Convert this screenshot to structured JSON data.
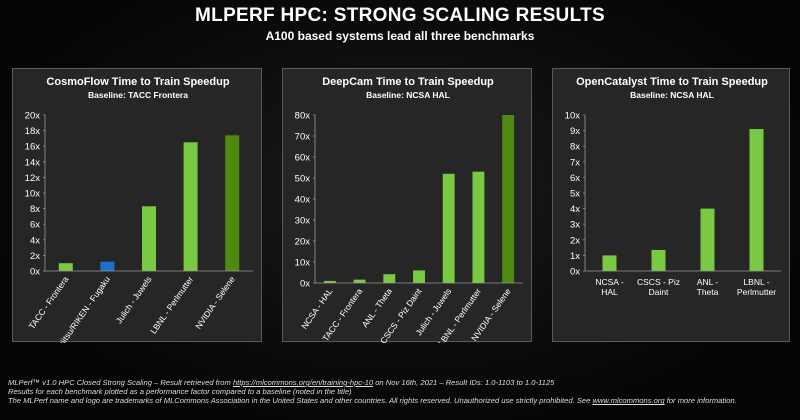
{
  "title": "MLPERF HPC: STRONG SCALING RESULTS",
  "subtitle": "A100 based systems lead all three benchmarks",
  "chart_data": [
    {
      "type": "bar",
      "title": "CosmoFlow Time to Train Speedup",
      "subtitle": "Baseline: TACC Frontera",
      "categories": [
        "TACC - Frontera",
        "Fujitsu/RIKEN - Fugaku",
        "Julich - Juwels",
        "LBNL - Perlmutter",
        "NVIDIA - Selene"
      ],
      "values": [
        1.0,
        1.2,
        8.3,
        16.5,
        17.4
      ],
      "colors": [
        "#7ac943",
        "#1a6fd0",
        "#7ac943",
        "#7ac943",
        "#4f8a10"
      ],
      "ylim": [
        0,
        20
      ],
      "yticks": [
        {
          "value": 0,
          "label": "0x"
        },
        {
          "value": 2,
          "label": "2x"
        },
        {
          "value": 4,
          "label": "4x"
        },
        {
          "value": 6,
          "label": "6x"
        },
        {
          "value": 8,
          "label": "8x"
        },
        {
          "value": 10,
          "label": "10x"
        },
        {
          "value": 12,
          "label": "12x"
        },
        {
          "value": 14,
          "label": "14x"
        },
        {
          "value": 16,
          "label": "16x"
        },
        {
          "value": 18,
          "label": "18x"
        },
        {
          "value": 20,
          "label": "20x"
        }
      ]
    },
    {
      "type": "bar",
      "title": "DeepCam Time to Train Speedup",
      "subtitle": "Baseline: NCSA HAL",
      "categories": [
        "NCSA - HAL",
        "TACC - Frontera",
        "ANL - Theta",
        "CSCS - Piz Daint",
        "Julich - Juwels",
        "LBNL - Perlmutter",
        "NVIDIA - Selene"
      ],
      "values": [
        1.0,
        1.6,
        4.2,
        6.0,
        52,
        53,
        80
      ],
      "colors": [
        "#7ac943",
        "#7ac943",
        "#7ac943",
        "#7ac943",
        "#7ac943",
        "#7ac943",
        "#4f8a10"
      ],
      "ylim": [
        0,
        80
      ],
      "yticks": [
        {
          "value": 0,
          "label": "0x"
        },
        {
          "value": 10,
          "label": "10x"
        },
        {
          "value": 20,
          "label": "20x"
        },
        {
          "value": 30,
          "label": "30x"
        },
        {
          "value": 40,
          "label": "40x"
        },
        {
          "value": 50,
          "label": "50x"
        },
        {
          "value": 60,
          "label": "60x"
        },
        {
          "value": 70,
          "label": "70x"
        },
        {
          "value": 80,
          "label": "80x"
        }
      ]
    },
    {
      "type": "bar",
      "title": "OpenCatalyst Time to Train Speedup",
      "subtitle": "Baseline: NCSA HAL",
      "categories": [
        "NCSA - HAL",
        "CSCS - Piz Daint",
        "ANL - Theta",
        "LBNL - Perlmutter"
      ],
      "values": [
        1.0,
        1.35,
        4.0,
        9.1
      ],
      "colors": [
        "#7ac943",
        "#7ac943",
        "#7ac943",
        "#7ac943"
      ],
      "ylim": [
        0,
        10
      ],
      "yticks": [
        {
          "value": 0,
          "label": "0x"
        },
        {
          "value": 1,
          "label": "1x"
        },
        {
          "value": 2,
          "label": "2x"
        },
        {
          "value": 3,
          "label": "3x"
        },
        {
          "value": 4,
          "label": "4x"
        },
        {
          "value": 5,
          "label": "5x"
        },
        {
          "value": 6,
          "label": "6x"
        },
        {
          "value": 7,
          "label": "7x"
        },
        {
          "value": 8,
          "label": "8x"
        },
        {
          "value": 9,
          "label": "9x"
        },
        {
          "value": 10,
          "label": "10x"
        }
      ]
    }
  ],
  "footnotes": [
    [
      "MLPerf™ v1.0 HPC Closed Strong Scaling – Result retrieved from ",
      "https://mlcommons.org/en/training-hpc-10",
      " on Nov 16th, 2021 – Result IDs: 1.0-1103 to 1.0-1125"
    ],
    [
      "Results for each benchmark plotted as a performance factor compared to a baseline (noted in the title)"
    ],
    [
      "The MLPerf name and logo are trademarks of MLCommons Association in the United States and other countries. All rights reserved. Unauthorized use strictly prohibited. See ",
      "www.mlcommons.org",
      " for more information."
    ]
  ]
}
